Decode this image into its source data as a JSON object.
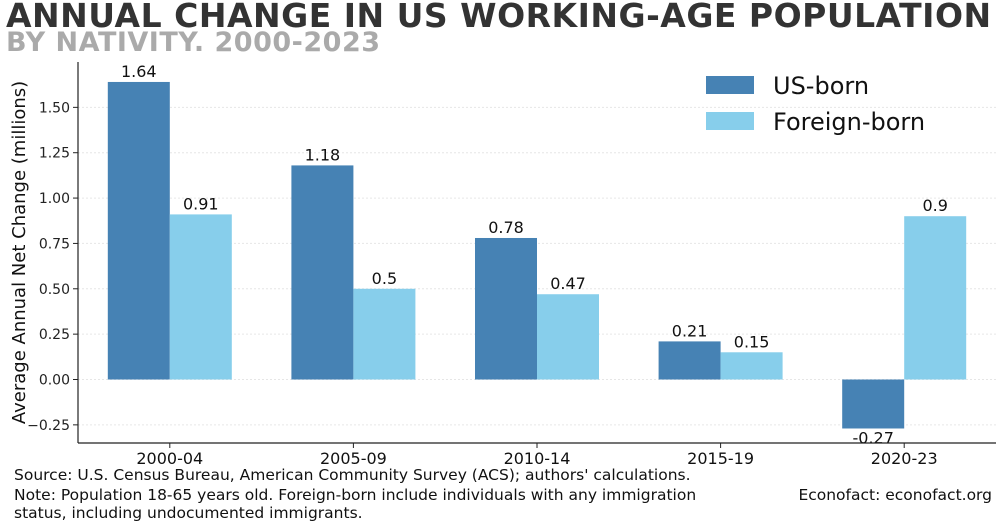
{
  "title": "ANNUAL CHANGE IN US WORKING-AGE POPULATION",
  "subtitle": "BY NATIVITY. 2000-2023",
  "source": "Source: U.S. Census Bureau, American Community Survey (ACS); authors' calculations.",
  "note_line1": "Note: Population 18-65 years old. Foreign-born include individuals with any immigration",
  "note_line2": "status, including undocumented immigrants.",
  "credit": "Econofact: econofact.org",
  "chart_data": {
    "type": "bar",
    "title": "ANNUAL CHANGE IN US WORKING-AGE POPULATION",
    "subtitle": "BY NATIVITY. 2000-2023",
    "xlabel": "",
    "ylabel": "Average Annual Net Change (millions)",
    "categories": [
      "2000-04",
      "2005-09",
      "2010-14",
      "2015-19",
      "2020-23"
    ],
    "series": [
      {
        "name": "US-born",
        "color": "#4682b4",
        "values": [
          1.64,
          1.18,
          0.78,
          0.21,
          -0.27
        ],
        "labels": [
          "1.64",
          "1.18",
          "0.78",
          "0.21",
          "-0.27"
        ]
      },
      {
        "name": "Foreign-born",
        "color": "#87ceeb",
        "values": [
          0.91,
          0.5,
          0.47,
          0.15,
          0.9
        ],
        "labels": [
          "0.91",
          "0.5",
          "0.47",
          "0.15",
          "0.9"
        ]
      }
    ],
    "ylim": [
      -0.35,
      1.75
    ],
    "yticks": [
      -0.25,
      0.0,
      0.25,
      0.5,
      0.75,
      1.0,
      1.25,
      1.5
    ],
    "ytick_labels": [
      "−0.25",
      "0.00",
      "0.25",
      "0.50",
      "0.75",
      "1.00",
      "1.25",
      "1.50"
    ],
    "grid": true,
    "legend_position": "top-right"
  }
}
